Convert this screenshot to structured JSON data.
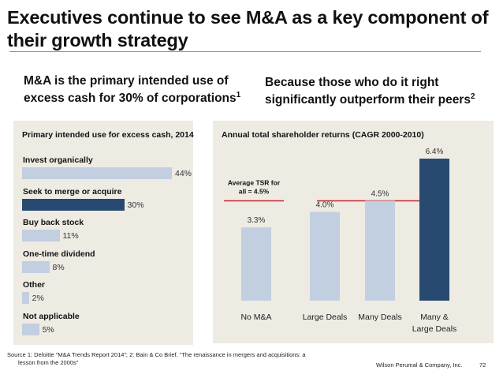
{
  "slide": {
    "title": "Executives continue to see M&A as a key component of their growth strategy",
    "left_subheading": "M&A is the primary intended use of excess cash for 30% of corporations",
    "left_subheading_sup": "1",
    "right_subheading": "Because those who do it right significantly outperform their peers",
    "right_subheading_sup": "2",
    "source_line1": "Source 1: Deloitte  “M&A Trends Report 2014”; 2: Bain & Co Brief, “The renaissance in mergers and acquisitions: a",
    "source_line2": "lesson from the 2000s”",
    "company": "Wilson Perumal & Company, Inc.",
    "page_number": "72"
  },
  "colors": {
    "light_bar": "#c2cfe0",
    "dark_bar": "#294a70",
    "panel_bg": "#eeebe3",
    "avg_line": "#c0282e"
  },
  "chart_data": [
    {
      "type": "bar",
      "orientation": "horizontal",
      "title": "Primary intended use for excess cash, 2014",
      "categories": [
        "Invest organically",
        "Seek to merge or acquire",
        "Buy back stock",
        "One-time dividend",
        "Other",
        "Not applicable"
      ],
      "values": [
        44,
        30,
        11,
        8,
        2,
        5
      ],
      "value_labels": [
        "44%",
        "30%",
        "11%",
        "8%",
        "2%",
        "5%"
      ],
      "highlight": [
        false,
        true,
        false,
        false,
        false,
        false
      ],
      "unit": "%",
      "xlim": [
        0,
        50
      ],
      "grid": false,
      "legend": "none"
    },
    {
      "type": "bar",
      "orientation": "vertical",
      "title": "Annual total shareholder returns (CAGR 2000-2010)",
      "categories": [
        "No M&A",
        "Large Deals",
        "Many Deals",
        "Many & Large Deals"
      ],
      "category_lines": [
        [
          "No M&A"
        ],
        [
          "Large Deals"
        ],
        [
          "Many Deals"
        ],
        [
          "Many &",
          "Large Deals"
        ]
      ],
      "values": [
        3.3,
        4.0,
        4.5,
        6.4
      ],
      "value_labels": [
        "3.3%",
        "4.0%",
        "4.5%",
        "6.4%"
      ],
      "highlight": [
        false,
        false,
        false,
        true
      ],
      "unit": "%",
      "ylim": [
        0,
        6.4
      ],
      "reference_line": {
        "value": 4.5,
        "label_line1": "Average TSR for",
        "label_line2": "all = 4.5%"
      },
      "grid": false,
      "legend": "none"
    }
  ]
}
